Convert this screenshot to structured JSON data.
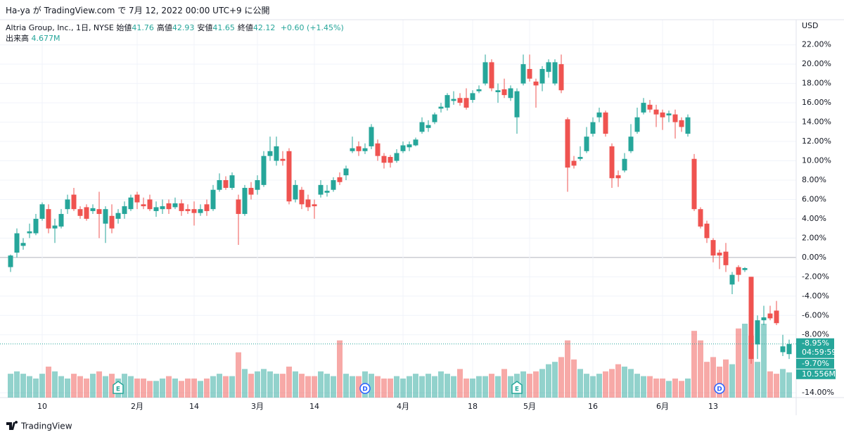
{
  "header": "Ha-ya が TradingView.com で 7月 12, 2022 00:00 UTC+9 に公開",
  "chart_data": {
    "type": "candlestick",
    "symbol": "Altria Group, Inc., 1日, NYSE",
    "ohlc_legend": [
      {
        "label": "始値",
        "value": 41.76
      },
      {
        "label": "高値",
        "value": 42.93
      },
      {
        "label": "安値",
        "value": 41.65
      },
      {
        "label": "終値",
        "value": 42.12
      }
    ],
    "change": "+0.60 (+1.45%)",
    "volume_legend": {
      "label": "出来高",
      "value": "4.677M"
    },
    "axis_unit": "USD",
    "up_color": "#26a69a",
    "down_color": "#ef5350",
    "ylim": [
      -14.5,
      24.6
    ],
    "yticks": [
      {
        "value": 22,
        "label": "22.00%"
      },
      {
        "value": 20,
        "label": "20.00%"
      },
      {
        "value": 18,
        "label": "18.00%"
      },
      {
        "value": 16,
        "label": "16.00%"
      },
      {
        "value": 14,
        "label": "14.00%"
      },
      {
        "value": 12,
        "label": "12.00%"
      },
      {
        "value": 10,
        "label": "10.00%"
      },
      {
        "value": 8,
        "label": "8.00%"
      },
      {
        "value": 6,
        "label": "6.00%"
      },
      {
        "value": 4,
        "label": "4.00%"
      },
      {
        "value": 2,
        "label": "2.00%"
      },
      {
        "value": 0,
        "label": "0.00%"
      },
      {
        "value": -2,
        "label": "-2.00%"
      },
      {
        "value": -4,
        "label": "-4.00%"
      },
      {
        "value": -6,
        "label": "-6.00%"
      },
      {
        "value": -8,
        "label": "-8.00%"
      },
      {
        "value": -14,
        "label": "-14.00%"
      }
    ],
    "x_labels": [
      {
        "index": 5,
        "label": "10"
      },
      {
        "index": 20,
        "label": "2月"
      },
      {
        "index": 29,
        "label": "14"
      },
      {
        "index": 39,
        "label": "3月"
      },
      {
        "index": 48,
        "label": "14"
      },
      {
        "index": 62,
        "label": "4月"
      },
      {
        "index": 73,
        "label": "18"
      },
      {
        "index": 82,
        "label": "5月"
      },
      {
        "index": 92,
        "label": "16"
      },
      {
        "index": 103,
        "label": "6月"
      },
      {
        "index": 111,
        "label": "13"
      }
    ],
    "open": [
      -1,
      0.5,
      1.2,
      2.5,
      2.5,
      4,
      5,
      3,
      3.2,
      5,
      6.5,
      5,
      5.2,
      4.8,
      5,
      3.5,
      4.3,
      4,
      4.5,
      5,
      6.5,
      5.5,
      6,
      4.8,
      5,
      5.6,
      5.2,
      5.6,
      5,
      5,
      4.6,
      5.5,
      5,
      7,
      8,
      7.2,
      6,
      4.5,
      7.2,
      7,
      7.5,
      10.5,
      10,
      10.2,
      11,
      6,
      7,
      6,
      5.5,
      6.5,
      6.7,
      7,
      8.3,
      8.5,
      11,
      11.5,
      11,
      11.5,
      11.8,
      10.5,
      10.4,
      10,
      11,
      11.4,
      11.6,
      13,
      13.4,
      14,
      15.4,
      15.5,
      16.2,
      16.5,
      16.5,
      16.3,
      17.2,
      18,
      20.2,
      17.1,
      17.4,
      16.5,
      14.5,
      18,
      19.5,
      18.2,
      18,
      19.2,
      18,
      20,
      14.3,
      10,
      10.2,
      11,
      12.8,
      14.5,
      15,
      11.5,
      8.5,
      9,
      11,
      13,
      15,
      15.8,
      15.3,
      15,
      14.7,
      14.8,
      14.2,
      12.8,
      10.2,
      5,
      3.5,
      1.8,
      0.5,
      0.6,
      -2.8,
      -1,
      -1.3,
      -2,
      -9,
      -6.5,
      -5.8,
      -5.5,
      -9.8,
      -10
    ],
    "high": [
      0.3,
      3,
      2,
      3.5,
      4.5,
      5.7,
      5.5,
      4,
      5,
      6.5,
      7.2,
      5.3,
      5.5,
      5.5,
      6.8,
      5.3,
      5.5,
      5,
      5.8,
      6.5,
      6.8,
      6.2,
      6.5,
      5.8,
      6,
      6,
      6.2,
      6,
      5.5,
      5.8,
      5.5,
      6,
      7.5,
      8.7,
      8.4,
      8.8,
      6.5,
      7.5,
      7.8,
      8.5,
      11,
      12.5,
      12.5,
      11,
      11.3,
      8,
      7.3,
      6.5,
      6,
      8,
      7.5,
      8.3,
      8.8,
      9.5,
      12.5,
      12,
      11.8,
      13.8,
      12.2,
      10.8,
      10.6,
      11.2,
      12,
      12,
      12.4,
      14.5,
      14.2,
      15,
      16,
      17,
      17.2,
      17,
      17.5,
      17.3,
      17.8,
      21,
      20.5,
      18,
      18.5,
      17.8,
      17.5,
      21,
      21,
      18.5,
      19.8,
      20.5,
      20.5,
      21,
      14.5,
      10.5,
      11.5,
      13.5,
      14.5,
      15.5,
      15.2,
      11.8,
      9,
      10.8,
      13.8,
      15.5,
      16.5,
      16.3,
      15.8,
      15.3,
      15.2,
      15.3,
      14.5,
      14.8,
      10.7,
      5.2,
      3.8,
      2,
      0.8,
      1.5,
      -1.5,
      -0.8,
      -1,
      -2,
      -6,
      -5,
      -5,
      -4.5,
      -8,
      -8.5
    ],
    "low": [
      -1.5,
      0,
      0.8,
      2,
      2.3,
      3.8,
      2.5,
      1.5,
      3,
      4.5,
      4.8,
      4,
      3.8,
      4.5,
      2,
      1.5,
      2.5,
      3.5,
      4,
      4.8,
      5,
      5,
      4.8,
      4.2,
      4.5,
      4.5,
      5,
      4.3,
      4.5,
      3.3,
      4.3,
      4.3,
      4.8,
      6.8,
      7,
      7,
      1.3,
      4.3,
      6,
      6.5,
      7.3,
      10,
      9.5,
      9.5,
      5.5,
      5.7,
      5,
      4.8,
      4,
      6.2,
      6.3,
      6.8,
      7.5,
      8,
      10.8,
      10.5,
      10.7,
      11.2,
      10,
      9.2,
      9.3,
      9.8,
      10.8,
      11,
      11.5,
      12.8,
      13,
      13.8,
      15,
      15.2,
      15.8,
      15.7,
      15.3,
      16,
      17,
      17.8,
      17.2,
      16,
      16.5,
      16.2,
      12.8,
      17.8,
      18.2,
      15.5,
      17.2,
      18.6,
      17.8,
      17,
      6.8,
      9.2,
      10,
      10.8,
      12.5,
      14,
      12.5,
      7.2,
      7.3,
      8.8,
      10.8,
      12.8,
      14.8,
      15,
      13.5,
      13.2,
      14,
      12.3,
      13,
      12.5,
      4.8,
      3,
      1.5,
      -0.5,
      -1.2,
      -1.5,
      -3.8,
      -2.5,
      -1.5,
      -11,
      -10.5,
      -7,
      -6.5,
      -7,
      -10.2,
      -10.5
    ],
    "close": [
      0.2,
      2.5,
      1.5,
      2.7,
      4,
      5.5,
      3,
      3.3,
      4.5,
      6,
      5,
      4.3,
      4,
      5.1,
      4.5,
      5,
      3,
      4.6,
      5.3,
      6.2,
      5.7,
      5.3,
      5,
      5.2,
      5.3,
      5,
      5.6,
      4.8,
      4.8,
      4.6,
      5,
      4.8,
      7,
      8,
      7.2,
      8.5,
      4.5,
      7.2,
      6.5,
      8,
      10.5,
      11,
      11.5,
      10,
      5.8,
      7.5,
      5.5,
      5.2,
      5.3,
      7.5,
      6.9,
      8,
      7.8,
      9.2,
      11.3,
      11,
      11.3,
      13.5,
      10.5,
      9.8,
      9.8,
      10.8,
      11.6,
      11.7,
      12.2,
      14,
      13.7,
      14.8,
      15.6,
      16.8,
      16.4,
      16,
      15.5,
      17,
      17.4,
      20.2,
      17.5,
      17.3,
      16.8,
      17.5,
      17.2,
      20,
      18.5,
      17.8,
      19.5,
      20.2,
      20.2,
      17.3,
      9.3,
      9.5,
      10.4,
      12.5,
      14,
      15,
      12.8,
      8.2,
      8.2,
      10.2,
      12.5,
      14.5,
      16,
      15.3,
      14.8,
      14.5,
      14.9,
      14,
      13.5,
      14.5,
      5,
      3.2,
      2,
      0.2,
      0.2,
      -0.8,
      -1.8,
      -1.8,
      -1.1,
      -10.5,
      -6.5,
      -6.2,
      -6.3,
      -6.8,
      -9.2,
      -8.95
    ],
    "volume": [
      10,
      11,
      10,
      9,
      8,
      10,
      13,
      11,
      9,
      8,
      10,
      9,
      8,
      10,
      11,
      9,
      10,
      8,
      10,
      9,
      8,
      8,
      7,
      7,
      8,
      9,
      8,
      7,
      8,
      8,
      7,
      8,
      9,
      10,
      9,
      9,
      19,
      12,
      10,
      11,
      12,
      11,
      10,
      10,
      13,
      11,
      10,
      9,
      9,
      11,
      10,
      9,
      24,
      10,
      9,
      9,
      11,
      10,
      9,
      8,
      8,
      9,
      8,
      9,
      10,
      9,
      10,
      9,
      11,
      10,
      9,
      12,
      8,
      8,
      9,
      9,
      10,
      9,
      12,
      9,
      10,
      11,
      10,
      11,
      12,
      14,
      15,
      17,
      24,
      16,
      12,
      10,
      9,
      10,
      11,
      12,
      14,
      13,
      12,
      10,
      9,
      9,
      8,
      8,
      7,
      8,
      7,
      8,
      28,
      24,
      15,
      17,
      13,
      16,
      14,
      29,
      31,
      26,
      15,
      31,
      11,
      10,
      12,
      10.556
    ],
    "events": [
      {
        "index": 17,
        "label": "E"
      },
      {
        "index": 56,
        "label": "D"
      },
      {
        "index": 80,
        "label": "E"
      },
      {
        "index": 112,
        "label": "D"
      }
    ],
    "last_price": {
      "value": -8.95,
      "label": "-8.95%"
    },
    "countdown": "04:59:59",
    "prev_price": {
      "value": -9.7,
      "label": "-9.70%"
    },
    "volume_tag": {
      "value": 10.556,
      "label": "10.556M"
    }
  },
  "footer": "TradingView"
}
